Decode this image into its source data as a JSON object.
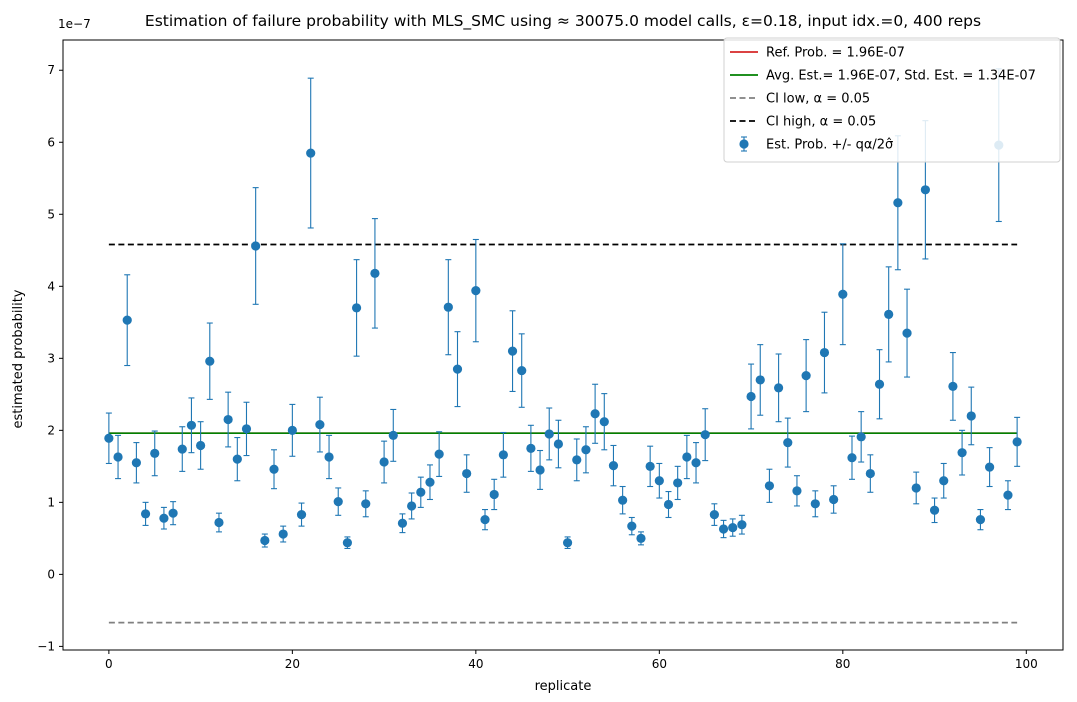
{
  "chart_data": {
    "type": "scatter",
    "title": "Estimation of failure probability with MLS_SMC using ≈ 30075.0 model calls, ε=0.18, input idx.=0, 400 reps",
    "xlabel": "replicate",
    "ylabel": "estimated probability",
    "y_offset_label": "1e−7",
    "xlim": [
      -5,
      104
    ],
    "ylim": [
      -1.05,
      7.42
    ],
    "x_ticks": [
      0,
      20,
      40,
      60,
      80,
      100
    ],
    "x_tick_labels": [
      "0",
      "20",
      "40",
      "60",
      "80",
      "100"
    ],
    "y_ticks": [
      -1,
      0,
      1,
      2,
      3,
      4,
      5,
      6,
      7
    ],
    "y_tick_labels": [
      "−1",
      "0",
      "1",
      "2",
      "3",
      "4",
      "5",
      "6",
      "7"
    ],
    "grid": false,
    "legend_position": "top-right",
    "legend": [
      {
        "label": "Ref. Prob. = 1.96E-07",
        "kind": "line",
        "color": "#d62728"
      },
      {
        "label": "Avg. Est.= 1.96E-07, Std. Est. = 1.34E-07",
        "kind": "line",
        "color": "#008000"
      },
      {
        "label": "CI low, α = 0.05",
        "kind": "dashed",
        "color": "#808080"
      },
      {
        "label": "CI high, α = 0.05",
        "kind": "dashed",
        "color": "#000000"
      },
      {
        "label": "Est. Prob. +/- qα/2σ̂",
        "kind": "errorbar",
        "color": "#1f77b4"
      }
    ],
    "reference_lines": {
      "ref_prob": 1.96,
      "avg_est": 1.96,
      "ci_low": -0.67,
      "ci_high": 4.58,
      "x_range": [
        0,
        99
      ]
    },
    "series": [
      {
        "x": [
          0,
          1,
          2,
          3,
          4,
          5,
          6,
          7,
          8,
          9,
          10,
          11,
          12,
          13,
          14,
          15,
          16,
          17,
          18,
          19,
          20,
          21,
          22,
          23,
          24,
          25,
          26,
          27,
          28,
          29,
          30,
          31,
          32,
          33,
          34,
          35,
          36,
          37,
          38,
          39,
          40,
          41,
          42,
          43,
          44,
          45,
          46,
          47,
          48,
          49,
          50,
          51,
          52,
          53,
          54,
          55,
          56,
          57,
          58,
          59,
          60,
          61,
          62,
          63,
          64,
          65,
          66,
          67,
          68,
          69,
          70,
          71,
          72,
          73,
          74,
          75,
          76,
          77,
          78,
          79,
          80,
          81,
          82,
          83,
          84,
          85,
          86,
          87,
          88,
          89,
          90,
          91,
          92,
          93,
          94,
          95,
          96,
          97,
          98,
          99
        ],
        "y": [
          1.89,
          1.63,
          3.53,
          1.55,
          0.84,
          1.68,
          0.78,
          0.85,
          1.74,
          2.07,
          1.79,
          2.96,
          0.72,
          2.15,
          1.6,
          2.02,
          4.56,
          0.47,
          1.46,
          0.56,
          2.0,
          0.83,
          5.85,
          2.08,
          1.63,
          1.01,
          0.44,
          3.7,
          0.98,
          4.18,
          1.56,
          1.93,
          0.71,
          0.95,
          1.14,
          1.28,
          1.67,
          3.71,
          2.85,
          1.4,
          3.94,
          0.76,
          1.11,
          1.66,
          3.1,
          2.83,
          1.75,
          1.45,
          1.95,
          1.81,
          0.44,
          1.59,
          1.73,
          2.23,
          2.12,
          1.51,
          1.03,
          0.67,
          0.5,
          1.5,
          1.3,
          0.97,
          1.27,
          1.63,
          1.55,
          1.94,
          0.83,
          0.63,
          0.65,
          0.69,
          2.47,
          2.7,
          1.23,
          2.59,
          1.83,
          1.16,
          2.76,
          0.98,
          3.08,
          1.04,
          3.89,
          1.62,
          1.91,
          1.4,
          2.64,
          3.61,
          5.16,
          3.35,
          1.2,
          5.34,
          0.89,
          1.3,
          2.61,
          1.69,
          2.2,
          0.76,
          1.49,
          5.96,
          1.1,
          1.84
        ],
        "err": [
          0.35,
          0.3,
          0.63,
          0.28,
          0.16,
          0.31,
          0.15,
          0.16,
          0.31,
          0.38,
          0.33,
          0.53,
          0.13,
          0.38,
          0.3,
          0.37,
          0.81,
          0.09,
          0.27,
          0.11,
          0.36,
          0.16,
          1.04,
          0.38,
          0.3,
          0.19,
          0.08,
          0.67,
          0.18,
          0.76,
          0.29,
          0.36,
          0.13,
          0.18,
          0.21,
          0.24,
          0.31,
          0.66,
          0.52,
          0.26,
          0.71,
          0.14,
          0.21,
          0.31,
          0.56,
          0.51,
          0.32,
          0.27,
          0.36,
          0.33,
          0.08,
          0.29,
          0.32,
          0.41,
          0.39,
          0.28,
          0.19,
          0.12,
          0.09,
          0.28,
          0.24,
          0.18,
          0.23,
          0.3,
          0.28,
          0.36,
          0.15,
          0.12,
          0.12,
          0.13,
          0.45,
          0.49,
          0.23,
          0.47,
          0.34,
          0.21,
          0.5,
          0.18,
          0.56,
          0.19,
          0.7,
          0.3,
          0.35,
          0.26,
          0.48,
          0.66,
          0.93,
          0.61,
          0.22,
          0.96,
          0.17,
          0.24,
          0.47,
          0.31,
          0.4,
          0.14,
          0.27,
          1.06,
          0.2,
          0.34
        ]
      }
    ]
  }
}
